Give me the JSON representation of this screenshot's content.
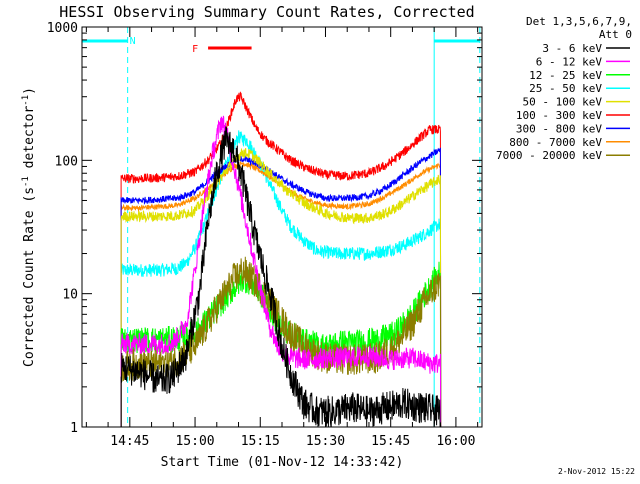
{
  "chart_data": {
    "type": "line",
    "title": "HESSI Observing Summary Count Rates, Corrected",
    "xlabel": "Start Time (01-Nov-12 14:33:42)",
    "ylabel_main": "Corrected Count Rate (s",
    "ylabel_sup1": "-1",
    "ylabel_mid": " detector",
    "ylabel_sup2": "-1",
    "ylabel_end": ")",
    "yscale": "log",
    "ylim": [
      1,
      1000
    ],
    "xlim_minutes": [
      34,
      126
    ],
    "y_ticks": [
      {
        "value": 1,
        "label": "1"
      },
      {
        "value": 10,
        "label": "10"
      },
      {
        "value": 100,
        "label": "100"
      },
      {
        "value": 1000,
        "label": "1000"
      }
    ],
    "x_ticks": [
      {
        "minute": 45,
        "label": "14:45"
      },
      {
        "minute": 60,
        "label": "15:00"
      },
      {
        "minute": 75,
        "label": "15:15"
      },
      {
        "minute": 90,
        "label": "15:30"
      },
      {
        "minute": 105,
        "label": "15:45"
      },
      {
        "minute": 120,
        "label": "16:00"
      }
    ],
    "legend_header": [
      "Det 1,3,5,6,7,9,",
      "Att 0"
    ],
    "legend_position": "right",
    "flags": [
      {
        "label": "N",
        "color": "#00ffff",
        "start_minute": 34,
        "end_minute": 44.5,
        "style": "solid"
      },
      {
        "label": "F",
        "color": "#ff0000",
        "start_minute": 63,
        "end_minute": 73,
        "style": "solid"
      },
      {
        "label": "",
        "color": "#00ffff",
        "start_minute": 115,
        "end_minute": 125.5,
        "style": "solid"
      }
    ],
    "night_lines_minutes": [
      {
        "minute": 34,
        "style": "solid"
      },
      {
        "minute": 44.5,
        "style": "dashed"
      },
      {
        "minute": 115,
        "style": "solid"
      },
      {
        "minute": 125.5,
        "style": "dashed"
      }
    ],
    "data_start_minute": 43,
    "data_end_minute": 116.5,
    "series": [
      {
        "name": "3 - 6 keV",
        "color": "#000000",
        "noise": 0.12,
        "x": [
          43,
          47,
          52,
          55,
          58,
          61,
          63,
          65,
          67,
          69,
          71,
          73,
          76,
          78,
          80,
          82,
          85,
          88,
          92,
          96,
          100,
          104,
          108,
          112,
          116
        ],
        "y": [
          2.8,
          2.6,
          2.2,
          2.4,
          3.5,
          10,
          35,
          80,
          140,
          120,
          70,
          35,
          14,
          8,
          4,
          2.5,
          1.5,
          1.3,
          1.3,
          1.4,
          1.3,
          1.4,
          1.5,
          1.4,
          1.3
        ]
      },
      {
        "name": "6 - 12 keV",
        "color": "#ff00ff",
        "noise": 0.08,
        "x": [
          43,
          47,
          52,
          55,
          58,
          60,
          62,
          64,
          66,
          67,
          69,
          71,
          73,
          75,
          77,
          79,
          82,
          86,
          90,
          95,
          100,
          105,
          110,
          114,
          116
        ],
        "y": [
          4.2,
          4.2,
          4.2,
          4.3,
          6,
          15,
          45,
          110,
          200,
          170,
          90,
          45,
          22,
          11,
          6,
          4,
          3.3,
          3.2,
          3.3,
          3.3,
          3.4,
          3.2,
          3.3,
          3.0,
          3.0
        ]
      },
      {
        "name": "12 - 25 keV",
        "color": "#00ff00",
        "noise": 0.1,
        "x": [
          43,
          47,
          52,
          56,
          60,
          63,
          66,
          69,
          71,
          73,
          75,
          77,
          79,
          82,
          86,
          90,
          94,
          98,
          102,
          106,
          110,
          113,
          116
        ],
        "y": [
          4.5,
          4.5,
          4.5,
          4.6,
          5,
          6.5,
          8.5,
          11,
          13,
          12,
          10,
          8,
          6,
          5,
          4.3,
          4,
          4.3,
          4.3,
          4.5,
          5,
          7,
          10,
          14
        ]
      },
      {
        "name": "25 - 50 keV",
        "color": "#00ffff",
        "noise": 0.05,
        "x": [
          43,
          47,
          52,
          56,
          58,
          60,
          62,
          64,
          66,
          68,
          70,
          72,
          74,
          76,
          78,
          80,
          82,
          85,
          88,
          92,
          96,
          100,
          104,
          108,
          112,
          116
        ],
        "y": [
          15,
          15,
          15,
          15.5,
          17,
          22,
          32,
          50,
          75,
          110,
          150,
          140,
          110,
          80,
          58,
          42,
          32,
          25,
          21,
          20,
          20,
          20,
          21,
          23,
          27,
          33
        ]
      },
      {
        "name": "50 - 100 keV",
        "color": "#e0e000",
        "noise": 0.04,
        "x": [
          43,
          47,
          52,
          56,
          60,
          63,
          66,
          69,
          71,
          73,
          75,
          78,
          81,
          85,
          90,
          95,
          100,
          104,
          108,
          112,
          116
        ],
        "y": [
          38,
          38,
          38,
          38.5,
          42,
          55,
          75,
          100,
          115,
          110,
          95,
          75,
          60,
          48,
          40,
          37,
          37,
          40,
          48,
          60,
          72
        ]
      },
      {
        "name": "100 - 300 keV",
        "color": "#ff0000",
        "noise": 0.035,
        "x": [
          43,
          47,
          52,
          56,
          60,
          63,
          66,
          68,
          69.5,
          70.5,
          72,
          74,
          76,
          79,
          82,
          86,
          90,
          95,
          100,
          104,
          108,
          112,
          114,
          116
        ],
        "y": [
          73,
          73,
          74,
          76,
          82,
          100,
          135,
          210,
          290,
          300,
          240,
          175,
          145,
          120,
          100,
          86,
          78,
          76,
          80,
          92,
          115,
          150,
          170,
          170
        ]
      },
      {
        "name": "300 - 800 keV",
        "color": "#0000ff",
        "noise": 0.025,
        "x": [
          43,
          47,
          52,
          56,
          60,
          63,
          66,
          69,
          71,
          73,
          76,
          79,
          82,
          86,
          90,
          95,
          100,
          104,
          108,
          112,
          116
        ],
        "y": [
          50,
          50,
          51,
          52,
          58,
          70,
          85,
          100,
          103,
          98,
          88,
          76,
          66,
          57,
          52,
          52,
          54,
          62,
          78,
          98,
          118
        ]
      },
      {
        "name": "800 - 7000 keV",
        "color": "#ff8c00",
        "noise": 0.02,
        "x": [
          43,
          47,
          52,
          56,
          60,
          63,
          66,
          69,
          71,
          73,
          76,
          79,
          82,
          86,
          90,
          95,
          100,
          104,
          108,
          112,
          116
        ],
        "y": [
          44,
          44,
          45,
          46,
          52,
          62,
          75,
          90,
          95,
          90,
          80,
          68,
          58,
          50,
          46,
          45,
          47,
          54,
          65,
          80,
          92
        ]
      },
      {
        "name": "7000 - 20000 keV",
        "color": "#8b7d00",
        "noise": 0.12,
        "x": [
          43,
          47,
          52,
          56,
          60,
          63,
          66,
          69,
          71,
          73,
          75,
          77,
          79,
          82,
          86,
          90,
          94,
          98,
          102,
          106,
          110,
          113,
          116
        ],
        "y": [
          2.8,
          3.0,
          3.0,
          3.2,
          4,
          6,
          9,
          13,
          15,
          13,
          11,
          9,
          7,
          5,
          3.8,
          3.3,
          3.2,
          3.2,
          3.3,
          4,
          6,
          9,
          12
        ]
      }
    ]
  },
  "footer": {
    "date_stamp": "2-Nov-2012 15:22"
  }
}
